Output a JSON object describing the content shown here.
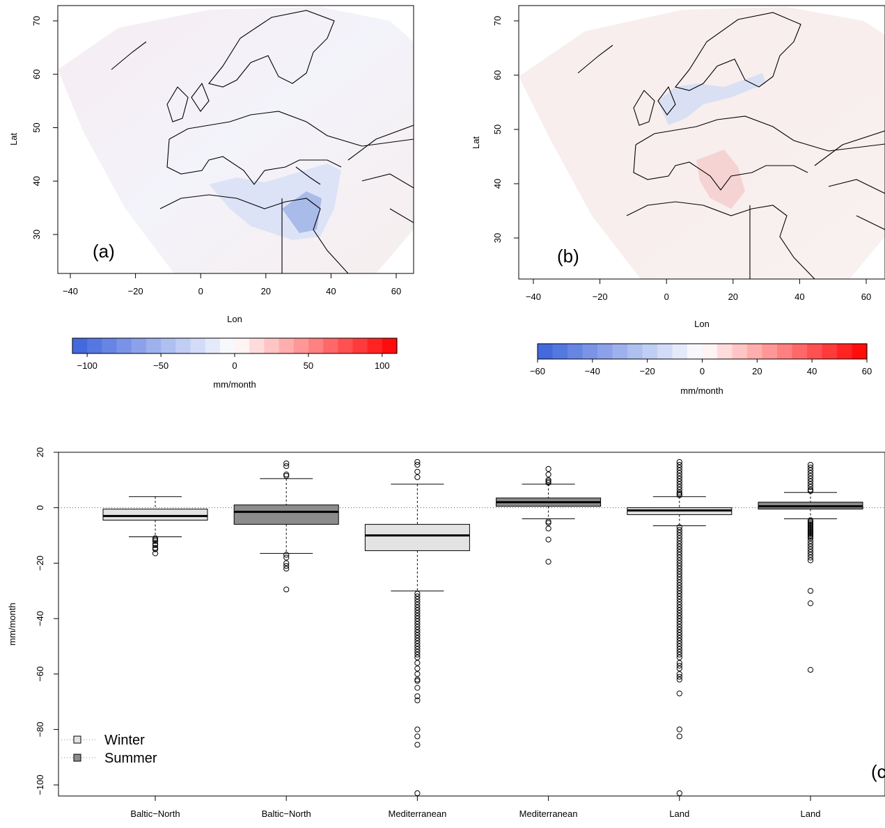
{
  "colors": {
    "negative": "#3a62db",
    "positive": "#ff0000",
    "winter_box": "#e3e3e3",
    "summer_box": "#8c8c8c",
    "land_line": "#000000"
  },
  "map_a": {
    "panel_label": "(a)",
    "xlabel": "Lon",
    "ylabel": "Lat",
    "xticks": [
      -40,
      -20,
      0,
      20,
      40,
      60
    ],
    "yticks": [
      30,
      40,
      50,
      60,
      70
    ],
    "colorbar": {
      "ticks": [
        "−100",
        "−50",
        "0",
        "50",
        "100"
      ],
      "tick_values": [
        -100,
        -50,
        0,
        50,
        100
      ],
      "range": [
        -110,
        110
      ],
      "unit": "mm/month"
    }
  },
  "map_b": {
    "panel_label": "(b)",
    "xlabel": "Lon",
    "ylabel": "Lat",
    "xticks": [
      -40,
      -20,
      0,
      20,
      40,
      60
    ],
    "yticks": [
      30,
      40,
      50,
      60,
      70
    ],
    "colorbar": {
      "ticks": [
        "−60",
        "−40",
        "−20",
        "0",
        "20",
        "40",
        "60"
      ],
      "tick_values": [
        -60,
        -40,
        -20,
        0,
        20,
        40,
        60
      ],
      "range": [
        -60,
        60
      ],
      "unit": "mm/month"
    }
  },
  "chart_data": {
    "type": "boxplot",
    "panel_label": "(c",
    "ylabel": "mm/month",
    "ylim": [
      -104,
      20
    ],
    "yticks": [
      "20",
      "0",
      "−20",
      "−40",
      "−60",
      "−80",
      "−100"
    ],
    "ytick_values": [
      20,
      0,
      -20,
      -40,
      -60,
      -80,
      -100
    ],
    "categories": [
      "Baltic−North",
      "Baltic−North",
      "Mediterranean",
      "Mediterranean",
      "Land",
      "Land"
    ],
    "zero_line": true,
    "legend": {
      "position": "bottom-left",
      "entries": [
        {
          "label": "Winter",
          "color": "#e3e3e3"
        },
        {
          "label": "Summer",
          "color": "#8c8c8c"
        }
      ]
    },
    "boxes": [
      {
        "season": "winter",
        "whisker_low": -10.5,
        "q1": -4.5,
        "median": -3,
        "q3": -0.5,
        "whisker_high": 4,
        "outliers": [
          -11,
          -11.5,
          -12,
          -13,
          -13.5,
          -14.5,
          -15,
          -16.5
        ]
      },
      {
        "season": "summer",
        "whisker_low": -16.5,
        "q1": -6,
        "median": -1.5,
        "q3": 1,
        "whisker_high": 10.5,
        "outliers": [
          16,
          15,
          12,
          11.5,
          -17,
          -18,
          -20,
          -21,
          -22,
          -29.5
        ]
      },
      {
        "season": "winter",
        "whisker_low": -30,
        "q1": -15.5,
        "median": -10,
        "q3": -6,
        "whisker_high": 8.5,
        "outliers": [
          16.5,
          15.5,
          13,
          11,
          -31,
          -32,
          -33,
          -34,
          -35,
          -36,
          -37,
          -38,
          -39,
          -40,
          -41,
          -42,
          -43,
          -44,
          -45,
          -46,
          -47,
          -48,
          -49,
          -50,
          -51,
          -52,
          -53,
          -54,
          -56,
          -58,
          -60,
          -62,
          -62.5,
          -65,
          -68,
          -69.5,
          -80,
          -82.5,
          -85.5,
          -103
        ]
      },
      {
        "season": "summer",
        "whisker_low": -4,
        "q1": 0.5,
        "median": 2,
        "q3": 3.5,
        "whisker_high": 8.5,
        "outliers": [
          14,
          12,
          10,
          9.5,
          9,
          -5,
          -5.5,
          -7.5,
          -11.5,
          -19.5
        ]
      },
      {
        "season": "winter",
        "whisker_low": -6.5,
        "q1": -2.5,
        "median": -1,
        "q3": 0,
        "whisker_high": 4,
        "outliers": [
          16.5,
          15.5,
          14.5,
          13.5,
          12.5,
          11.5,
          10.5,
          9.5,
          8.5,
          7.5,
          6.5,
          5.5,
          5,
          4.5,
          -7,
          -8,
          -9,
          -10,
          -11,
          -12,
          -13,
          -14,
          -15,
          -16,
          -17,
          -18,
          -19,
          -20,
          -21,
          -22,
          -23,
          -24,
          -25,
          -26,
          -27,
          -28,
          -29,
          -30,
          -31,
          -32,
          -33,
          -34,
          -35,
          -36,
          -37,
          -38,
          -39,
          -40,
          -41,
          -42,
          -43,
          -44,
          -45,
          -46,
          -47,
          -48,
          -49,
          -50,
          -51,
          -52,
          -53,
          -54,
          -56,
          -57,
          -58,
          -60,
          -61,
          -62,
          -67,
          -80,
          -82.5,
          -103
        ]
      },
      {
        "season": "summer",
        "whisker_low": -4,
        "q1": -0.5,
        "median": 0.5,
        "q3": 2,
        "whisker_high": 5.5,
        "outliers": [
          15.5,
          14.5,
          13.5,
          12.5,
          11.5,
          10.5,
          9.5,
          8.5,
          7.5,
          6.5,
          6,
          -4.5,
          -5,
          -5.5,
          -6,
          -6.5,
          -7,
          -7.5,
          -8,
          -8.5,
          -9,
          -9.5,
          -10,
          -10.5,
          -11,
          -12,
          -13,
          -14,
          -15,
          -16,
          -17,
          -18,
          -19,
          -30,
          -34.5,
          -58.5
        ]
      }
    ]
  }
}
